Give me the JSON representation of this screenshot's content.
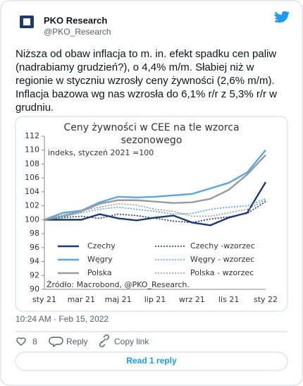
{
  "tweet": {
    "name": "PKO Research",
    "handle": "@PKO_Research",
    "text": [
      "Niższa od obaw inflacja to m. in. efekt spadku cen paliw",
      "(nadrabiamy grudzień?), o 4,4% m/m. Słabiej niż w",
      "regionie w styczniu wzrosły ceny żywności (2,6% m/m).",
      "Inflacja bazowa wg nas wzrosła do 6,1% r/r z 5,3% r/r w",
      "grudniu."
    ],
    "timestamp": "10:24 AM · Feb 15, 2022",
    "likes": 8,
    "reply": "Reply",
    "copy_link": "Copy link",
    "read_replies": "Read 1 reply"
  },
  "chart_data": {
    "type": "line",
    "title": [
      "Ceny żywności w CEE na tle wzorca",
      "sezonowego"
    ],
    "annotation": "indeks, styczeń 2021 =100",
    "source": "Źródło: Macrobond, @PKO_Research.",
    "categories": [
      "sty 21",
      null,
      "mar 21",
      null,
      "maj 21",
      null,
      "lip 21",
      null,
      "wrz 21",
      null,
      "lis 21",
      null,
      "sty 22"
    ],
    "ylim": [
      90,
      112
    ],
    "yticks": [
      90,
      92,
      94,
      96,
      98,
      100,
      102,
      104,
      106,
      108,
      110,
      112
    ],
    "series": [
      {
        "name": "Czechy",
        "color": "#1c3a6e",
        "style": "solid",
        "values": [
          100,
          100,
          100,
          100.8,
          100.2,
          99.9,
          100.3,
          100.6,
          99.6,
          99.2,
          100.3,
          101,
          105.4
        ]
      },
      {
        "name": "Węgry",
        "color": "#5aa6e0",
        "style": "solid",
        "values": [
          100,
          101,
          101.3,
          102.5,
          103.3,
          103.2,
          103.3,
          103.5,
          103.7,
          104.5,
          105.3,
          106.8,
          110
        ]
      },
      {
        "name": "Polska",
        "color": "#9a9a9a",
        "style": "solid",
        "values": [
          100,
          100.5,
          101.2,
          102.3,
          102.8,
          102.8,
          102.6,
          102.4,
          102.5,
          103,
          104.3,
          106.5,
          109.3
        ]
      },
      {
        "name": "Czechy -wzorzec",
        "color": "#1c3a6e",
        "style": "dotted",
        "values": [
          100,
          100.3,
          100.5,
          100.2,
          100.8,
          100.6,
          100.2,
          99.8,
          99.6,
          100.1,
          100.4,
          100.9,
          102.6
        ]
      },
      {
        "name": "Węgry - wzorzec",
        "color": "#5aa6e0",
        "style": "dotted",
        "values": [
          100,
          100.4,
          101,
          101.5,
          101.8,
          101.5,
          101.2,
          100.8,
          100.9,
          101.5,
          101.8,
          102,
          103
        ]
      },
      {
        "name": "Polska - wzorzec",
        "color": "#9a9a9a",
        "style": "dotted",
        "values": [
          100,
          100.7,
          101.3,
          101.8,
          102.3,
          102.1,
          101.5,
          101.2,
          100.5,
          100.5,
          101,
          101.5,
          102.8
        ]
      }
    ]
  }
}
